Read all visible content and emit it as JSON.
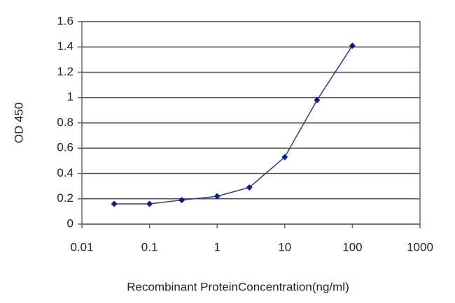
{
  "chart_data": {
    "type": "line",
    "xlabel": "Recombinant ProteinConcentration(ng/ml)",
    "ylabel": "OD 450",
    "x": [
      0.03,
      0.1,
      0.3,
      1,
      3,
      10,
      30,
      100
    ],
    "series": [
      {
        "color": "#2b3a9a",
        "marker_color": "#0a1a8a",
        "values": [
          0.16,
          0.16,
          0.19,
          0.22,
          0.29,
          0.53,
          0.98,
          1.41
        ]
      }
    ],
    "xlim": [
      0.01,
      1000
    ],
    "xticks": [
      0.01,
      0.1,
      1,
      10,
      100,
      1000
    ],
    "xscale": "log",
    "ylim": [
      0,
      1.6
    ],
    "yticks": [
      0,
      0.2,
      0.4,
      0.6,
      0.8,
      1,
      1.2,
      1.4,
      1.6
    ],
    "grid": true
  }
}
